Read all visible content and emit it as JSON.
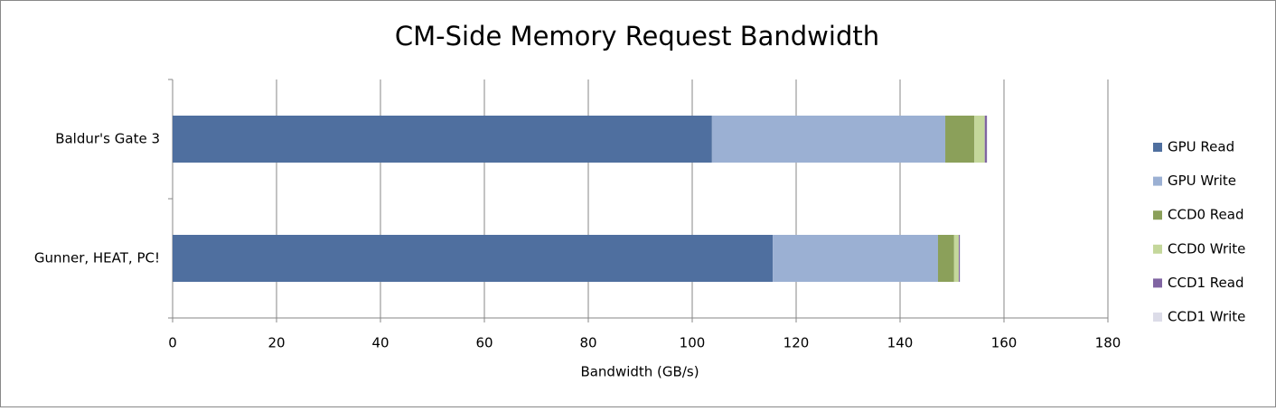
{
  "chart_data": {
    "type": "stacked_bar_horizontal",
    "title": "CM-Side Memory Request Bandwidth",
    "x_label": "Bandwidth (GB/s)",
    "categories": [
      "Baldur's Gate 3",
      "Gunner, HEAT, PC!"
    ],
    "series": [
      {
        "name": "GPU Read",
        "color": "#4f6f9f",
        "values": [
          103.8,
          115.5
        ]
      },
      {
        "name": "GPU Write",
        "color": "#9bb0d3",
        "values": [
          44.9,
          31.8
        ]
      },
      {
        "name": "CCD0 Read",
        "color": "#8ba05a",
        "values": [
          5.6,
          3.1
        ]
      },
      {
        "name": "CCD0 Write",
        "color": "#c4d79b",
        "values": [
          2.0,
          0.9
        ]
      },
      {
        "name": "CCD1 Read",
        "color": "#8064a2",
        "values": [
          0.4,
          0.2
        ]
      },
      {
        "name": "CCD1 Write",
        "color": "#dcdce8",
        "values": [
          0.1,
          0.1
        ]
      }
    ],
    "xlim": [
      0,
      180
    ],
    "xticks": [
      0,
      20,
      40,
      60,
      80,
      100,
      120,
      140,
      160,
      180
    ],
    "grid": true,
    "legend": "right"
  }
}
